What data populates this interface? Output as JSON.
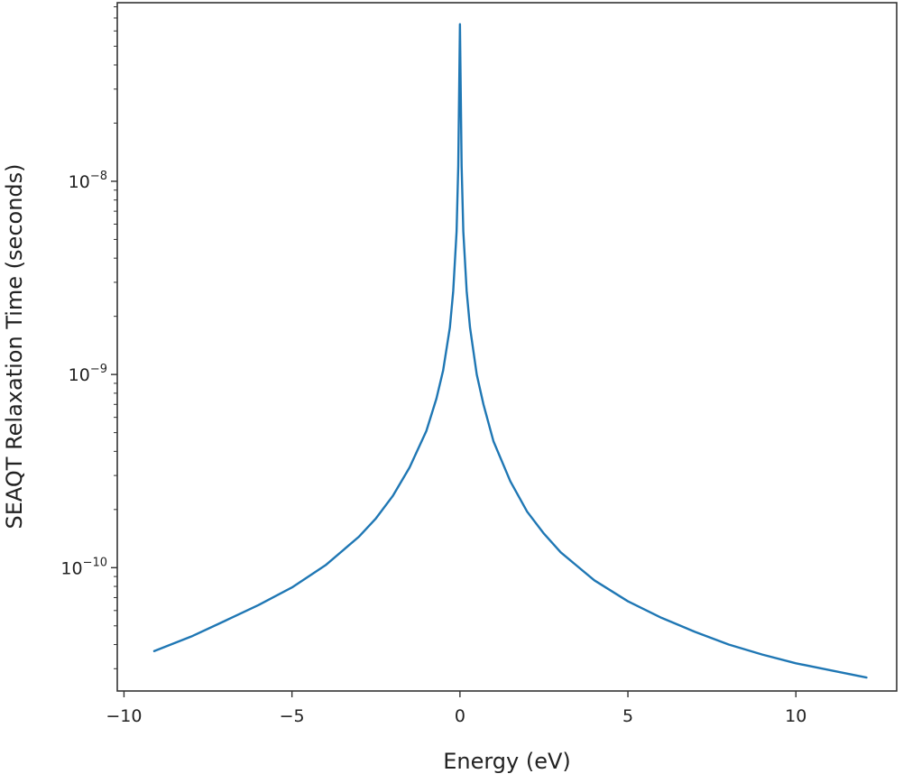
{
  "chart_data": {
    "type": "line",
    "title": "",
    "xlabel": "Energy (eV)",
    "ylabel": "SEAQT Relaxation Time (seconds)",
    "xscale": "linear",
    "yscale": "log",
    "xlim": [
      -10.2,
      13.0
    ],
    "ylim": [
      2.3e-11,
      8.4e-08
    ],
    "grid": false,
    "legend": "none",
    "x_ticks": [
      {
        "value": -10,
        "label": "−10"
      },
      {
        "value": -5,
        "label": "−5"
      },
      {
        "value": 0,
        "label": "0"
      },
      {
        "value": 5,
        "label": "5"
      },
      {
        "value": 10,
        "label": "10"
      }
    ],
    "y_ticks": [
      {
        "value": 1e-10,
        "base": "10",
        "exp": "−10"
      },
      {
        "value": 1e-09,
        "base": "10",
        "exp": "−9"
      },
      {
        "value": 1e-08,
        "base": "10",
        "exp": "−8"
      }
    ],
    "series": [
      {
        "color": "#1f77b4",
        "x": [
          -9.1,
          -8,
          -7,
          -6,
          -5,
          -4,
          -3,
          -2.5,
          -2,
          -1.5,
          -1,
          -0.7,
          -0.5,
          -0.3,
          -0.2,
          -0.1,
          -0.05,
          0,
          0.05,
          0.1,
          0.2,
          0.3,
          0.5,
          0.7,
          1,
          1.5,
          2,
          2.5,
          3,
          4,
          5,
          6,
          7,
          8,
          9,
          10,
          11,
          12.1
        ],
        "y": [
          3.7e-11,
          4.4e-11,
          5.3e-11,
          6.4e-11,
          7.9e-11,
          1.03e-10,
          1.45e-10,
          1.8e-10,
          2.35e-10,
          3.3e-10,
          5.1e-10,
          7.5e-10,
          1.05e-09,
          1.75e-09,
          2.7e-09,
          5.5e-09,
          1.2e-08,
          6.5e-08,
          1.2e-08,
          5.5e-09,
          2.7e-09,
          1.75e-09,
          1e-09,
          7e-10,
          4.5e-10,
          2.8e-10,
          1.95e-10,
          1.5e-10,
          1.2e-10,
          8.6e-11,
          6.7e-11,
          5.5e-11,
          4.65e-11,
          4e-11,
          3.55e-11,
          3.2e-11,
          2.95e-11,
          2.7e-11
        ]
      }
    ]
  }
}
